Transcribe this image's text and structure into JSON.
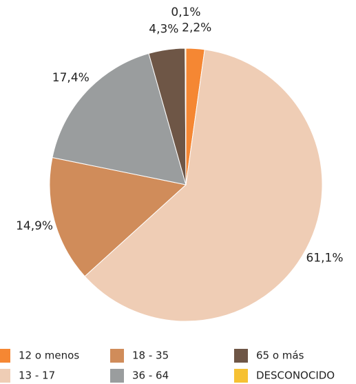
{
  "chart_data": {
    "type": "pie",
    "categories": [
      "12 o menos",
      "13 - 17",
      "18 - 35",
      "36 - 64",
      "65 o más",
      "DESCONOCIDO"
    ],
    "values": [
      2.2,
      61.1,
      14.9,
      17.4,
      4.3,
      0.1
    ],
    "value_labels": [
      "2,2%",
      "61,1%",
      "14,9%",
      "17,4%",
      "4,3%",
      "0,1%"
    ],
    "colors": [
      "#f58733",
      "#efcdb5",
      "#d08c5a",
      "#9a9d9e",
      "#6e5646",
      "#f6c133"
    ]
  }
}
